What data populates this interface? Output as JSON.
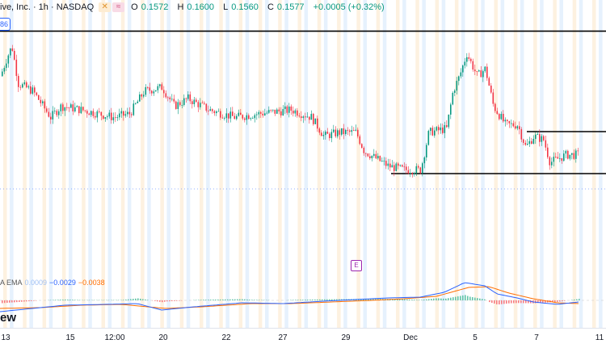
{
  "header": {
    "symbol": "ive, Inc. · 1h · NASDAQ",
    "icons": [
      "flag-icon",
      "wave-icon"
    ],
    "ohlc": [
      {
        "k": "O",
        "v": "0.1572"
      },
      {
        "k": "H",
        "v": "0.1600"
      },
      {
        "k": "L",
        "v": "0.1560"
      },
      {
        "k": "C",
        "v": "0.1577"
      }
    ],
    "change": "+0.0005 (+0.32%)"
  },
  "price_chip": "86",
  "event_badge": "E",
  "macd_legend": {
    "label": "A EMA",
    "a": "0.0009",
    "b": "−0.0029",
    "c": "−0.0038"
  },
  "watermark": "ew",
  "colors": {
    "up": "#089981",
    "down": "#f23645",
    "macd": "#2962ff",
    "signal": "#ff6d00",
    "band_orange": "#fdf1e0",
    "band_blue": "#e6f1fd"
  },
  "chart_data": {
    "type": "candlestick",
    "xticks": [
      "13",
      "15",
      "12:00",
      "20",
      "22",
      "27",
      "29",
      "Dec",
      "5",
      "7",
      "11"
    ],
    "price_lines": [
      {
        "name": "resistance",
        "y": 0.174
      },
      {
        "name": "upper",
        "y": 0.1606
      },
      {
        "name": "support",
        "y": 0.155
      }
    ],
    "macd": {
      "value": "0.0009",
      "signal": "−0.0029",
      "hist": "−0.0038"
    }
  }
}
